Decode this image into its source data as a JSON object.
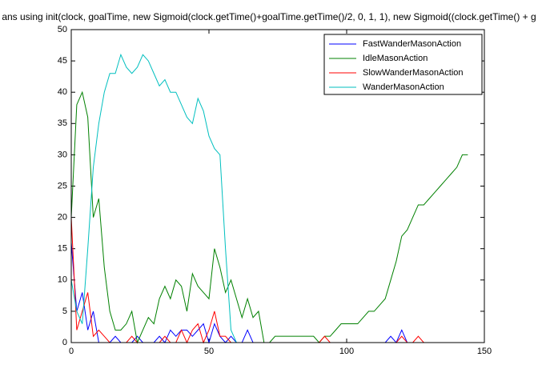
{
  "chart_data": {
    "type": "line",
    "title": "ans using init(clock, goalTime, new Sigmoid(clock.getTime()+goalTime.getTime()/2, 0, 1, 1), new Sigmoid((clock.getTime() + g",
    "x": [
      0,
      2,
      4,
      6,
      8,
      10,
      12,
      14,
      16,
      18,
      20,
      22,
      24,
      26,
      28,
      30,
      32,
      34,
      36,
      38,
      40,
      42,
      44,
      46,
      48,
      50,
      52,
      54,
      56,
      58,
      60,
      62,
      64,
      66,
      68,
      70,
      72,
      74,
      76,
      78,
      80,
      82,
      84,
      86,
      88,
      90,
      92,
      94,
      96,
      98,
      100,
      102,
      104,
      106,
      108,
      110,
      112,
      114,
      116,
      118,
      120,
      122,
      124,
      126,
      128,
      130,
      132,
      134,
      136,
      138,
      140,
      142,
      144
    ],
    "series": [
      {
        "name": "FastWanderMasonAction",
        "color": "#0000ff",
        "values": [
          16,
          5,
          8,
          2,
          5,
          0,
          0,
          0,
          1,
          0,
          0,
          0,
          1,
          0,
          0,
          0,
          1,
          0,
          2,
          1,
          2,
          2,
          1,
          2,
          3,
          0,
          3,
          1,
          0,
          1,
          0,
          0,
          2,
          0,
          0,
          0,
          0,
          0,
          0,
          0,
          0,
          0,
          0,
          0,
          0,
          0,
          0,
          0,
          0,
          0,
          0,
          0,
          0,
          0,
          0,
          0,
          0,
          0,
          1,
          0,
          2,
          0,
          0,
          0,
          0,
          0,
          0,
          0,
          0,
          0,
          0,
          0,
          0
        ]
      },
      {
        "name": "IdleMasonAction",
        "color": "#008000",
        "values": [
          20,
          38,
          40,
          36,
          20,
          23,
          12,
          5,
          2,
          2,
          3,
          5,
          0,
          2,
          4,
          3,
          7,
          9,
          7,
          10,
          9,
          5,
          11,
          9,
          8,
          7,
          15,
          12,
          8,
          10,
          7,
          4,
          7,
          4,
          5,
          0,
          0,
          1,
          1,
          1,
          1,
          1,
          1,
          1,
          1,
          0,
          1,
          1,
          2,
          3,
          3,
          3,
          3,
          4,
          5,
          5,
          6,
          7,
          10,
          13,
          17,
          18,
          20,
          22,
          22,
          23,
          24,
          25,
          26,
          27,
          28,
          30,
          30
        ]
      },
      {
        "name": "SlowWanderMasonAction",
        "color": "#ff0000",
        "values": [
          20,
          2,
          5,
          8,
          1,
          2,
          1,
          0,
          0,
          0,
          0,
          1,
          0,
          0,
          0,
          0,
          0,
          1,
          0,
          0,
          2,
          0,
          2,
          3,
          0,
          2,
          5,
          1,
          1,
          0,
          0,
          0,
          0,
          0,
          0,
          0,
          0,
          0,
          0,
          0,
          0,
          0,
          0,
          0,
          0,
          0,
          1,
          0,
          0,
          0,
          0,
          0,
          0,
          0,
          0,
          0,
          0,
          0,
          0,
          0,
          1,
          0,
          0,
          1,
          0,
          0,
          0,
          0,
          0,
          0,
          0,
          0,
          0
        ]
      },
      {
        "name": "WanderMasonAction",
        "color": "#00bfbf",
        "values": [
          10,
          5,
          3,
          15,
          28,
          35,
          40,
          43,
          43,
          46,
          44,
          43,
          44,
          46,
          45,
          43,
          41,
          42,
          40,
          40,
          38,
          36,
          35,
          39,
          37,
          33,
          31,
          30,
          15,
          2,
          0,
          0,
          0,
          0,
          0,
          0,
          0,
          0,
          0,
          0,
          0,
          0,
          0,
          0,
          0,
          0,
          0,
          0,
          0,
          0,
          0,
          0,
          0,
          0,
          0,
          0,
          0,
          0,
          0,
          0,
          0,
          0,
          0,
          0,
          0,
          0,
          0,
          0,
          0,
          0,
          0,
          0,
          0
        ]
      }
    ],
    "xlim": [
      0,
      150
    ],
    "xticks": [
      0,
      50,
      100,
      150
    ],
    "ylim": [
      0,
      50
    ],
    "yticks": [
      0,
      5,
      10,
      15,
      20,
      25,
      30,
      35,
      40,
      45,
      50
    ],
    "legend": "upper right"
  }
}
